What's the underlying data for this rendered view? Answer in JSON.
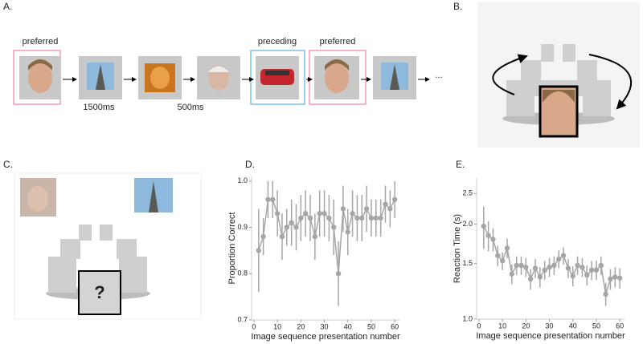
{
  "panel_labels": [
    "A.",
    "B.",
    "C.",
    "D.",
    "E."
  ],
  "sequence": {
    "labels": [
      "preferred",
      "preceding",
      "preferred"
    ],
    "durations": [
      "1500ms",
      "500ms"
    ],
    "ellipsis": "..."
  },
  "question": "?",
  "chart_data": [
    {
      "type": "line",
      "xlabel": "Image sequence presentation number",
      "ylabel": "Proportion Correct",
      "x": [
        2,
        4,
        6,
        8,
        10,
        12,
        14,
        16,
        18,
        20,
        22,
        24,
        26,
        28,
        30,
        32,
        34,
        36,
        38,
        40,
        42,
        44,
        46,
        48,
        50,
        52,
        54,
        56,
        58,
        60
      ],
      "values": [
        0.85,
        0.88,
        0.96,
        0.96,
        0.93,
        0.88,
        0.9,
        0.91,
        0.9,
        0.92,
        0.93,
        0.92,
        0.88,
        0.93,
        0.93,
        0.92,
        0.9,
        0.8,
        0.94,
        0.89,
        0.93,
        0.92,
        0.92,
        0.94,
        0.92,
        0.92,
        0.92,
        0.95,
        0.94,
        0.96
      ],
      "errors": [
        0.09,
        0.04,
        0.04,
        0.04,
        0.05,
        0.05,
        0.04,
        0.05,
        0.05,
        0.05,
        0.05,
        0.05,
        0.05,
        0.05,
        0.05,
        0.05,
        0.06,
        0.07,
        0.05,
        0.05,
        0.05,
        0.05,
        0.05,
        0.05,
        0.04,
        0.04,
        0.04,
        0.04,
        0.04,
        0.04
      ],
      "color": "#a6a6a6",
      "xlim": [
        -1,
        62
      ],
      "ylim": [
        0.7,
        1.01
      ],
      "xticks": [
        0,
        10,
        20,
        30,
        40,
        50,
        60
      ],
      "yticks": [
        0.7,
        0.8,
        0.9,
        {
          "value": 1,
          "label": "1.0"
        }
      ]
    },
    {
      "type": "line",
      "xlabel": "Image sequence presentation number",
      "ylabel": "Reaction Time (s)",
      "x": [
        2,
        4,
        6,
        8,
        10,
        12,
        14,
        16,
        18,
        20,
        22,
        24,
        26,
        28,
        30,
        32,
        34,
        36,
        38,
        40,
        42,
        44,
        46,
        48,
        50,
        52,
        54,
        56,
        58,
        60
      ],
      "values": [
        1.97,
        1.84,
        1.79,
        1.59,
        1.53,
        1.68,
        1.39,
        1.48,
        1.48,
        1.46,
        1.34,
        1.45,
        1.36,
        1.43,
        1.46,
        1.48,
        1.55,
        1.59,
        1.45,
        1.37,
        1.48,
        1.46,
        1.38,
        1.43,
        1.43,
        1.48,
        1.2,
        1.34,
        1.36,
        1.35
      ],
      "errors": [
        0.3,
        0.2,
        0.15,
        0.12,
        0.1,
        0.12,
        0.1,
        0.1,
        0.1,
        0.1,
        0.1,
        0.1,
        0.1,
        0.1,
        0.1,
        0.1,
        0.1,
        0.1,
        0.1,
        0.1,
        0.1,
        0.1,
        0.1,
        0.1,
        0.1,
        0.1,
        0.1,
        0.1,
        0.1,
        0.1
      ],
      "color": "#a6a6a6",
      "log_scale": true,
      "xlim": [
        -1,
        62
      ],
      "ylim": [
        1,
        2.8
      ],
      "xticks": [
        0,
        10,
        20,
        30,
        40,
        50,
        60
      ],
      "yticks": [
        {
          "value": 1,
          "label": "1.0"
        },
        1.5,
        {
          "value": 2,
          "label": "2.0"
        },
        2.5
      ]
    }
  ]
}
